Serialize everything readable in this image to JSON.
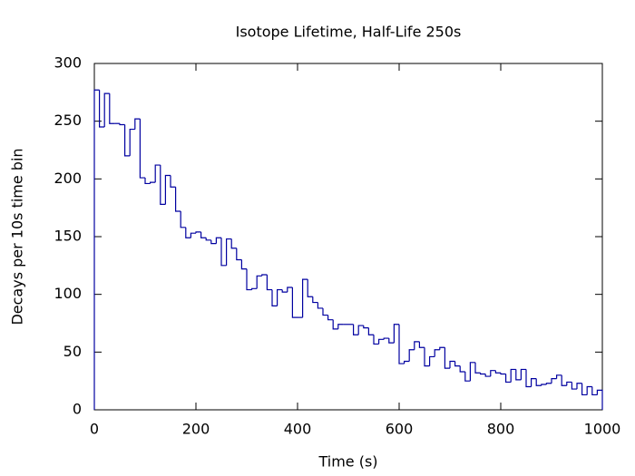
{
  "chart_data": {
    "type": "histogram",
    "title": "Isotope Lifetime, Half-Life 250s",
    "xlabel": "Time (s)",
    "ylabel": "Decays per 10s time bin",
    "color": "#0000a0",
    "bins": [
      0,
      10,
      20,
      30,
      40,
      50,
      60,
      70,
      80,
      90,
      100,
      110,
      120,
      130,
      140,
      150,
      160,
      170,
      180,
      190,
      200,
      210,
      220,
      230,
      240,
      250,
      260,
      270,
      280,
      290,
      300,
      310,
      320,
      330,
      340,
      350,
      360,
      370,
      380,
      390,
      400,
      410,
      420,
      430,
      440,
      450,
      460,
      470,
      480,
      490,
      500,
      510,
      520,
      530,
      540,
      550,
      560,
      570,
      580,
      590,
      600,
      610,
      620,
      630,
      640,
      650,
      660,
      670,
      680,
      690,
      700,
      710,
      720,
      730,
      740,
      750,
      760,
      770,
      780,
      790,
      800,
      810,
      820,
      830,
      840,
      850,
      860,
      870,
      880,
      890,
      900,
      910,
      920,
      930,
      940,
      950,
      960,
      970,
      980,
      990,
      1000
    ],
    "values": [
      277,
      245,
      274,
      248,
      248,
      247,
      220,
      243,
      252,
      201,
      196,
      197,
      212,
      178,
      203,
      193,
      172,
      158,
      149,
      153,
      154,
      149,
      147,
      144,
      149,
      125,
      148,
      140,
      130,
      122,
      104,
      105,
      116,
      117,
      104,
      90,
      104,
      102,
      106,
      80,
      80,
      113,
      98,
      93,
      88,
      82,
      78,
      70,
      74,
      74,
      74,
      65,
      73,
      71,
      65,
      57,
      61,
      62,
      58,
      74,
      40,
      42,
      52,
      59,
      54,
      38,
      46,
      52,
      54,
      36,
      42,
      38,
      33,
      25,
      41,
      32,
      31,
      29,
      34,
      32,
      31,
      24,
      35,
      26,
      35,
      20,
      27,
      21,
      22,
      23,
      27,
      30,
      21,
      24,
      18,
      23,
      13,
      20,
      13,
      17
    ],
    "xlim": [
      0,
      1000
    ],
    "xticks": [
      0,
      200,
      400,
      600,
      800,
      1000
    ],
    "ylim": [
      0,
      300
    ],
    "yticks": [
      0,
      50,
      100,
      150,
      200,
      250,
      300
    ]
  }
}
